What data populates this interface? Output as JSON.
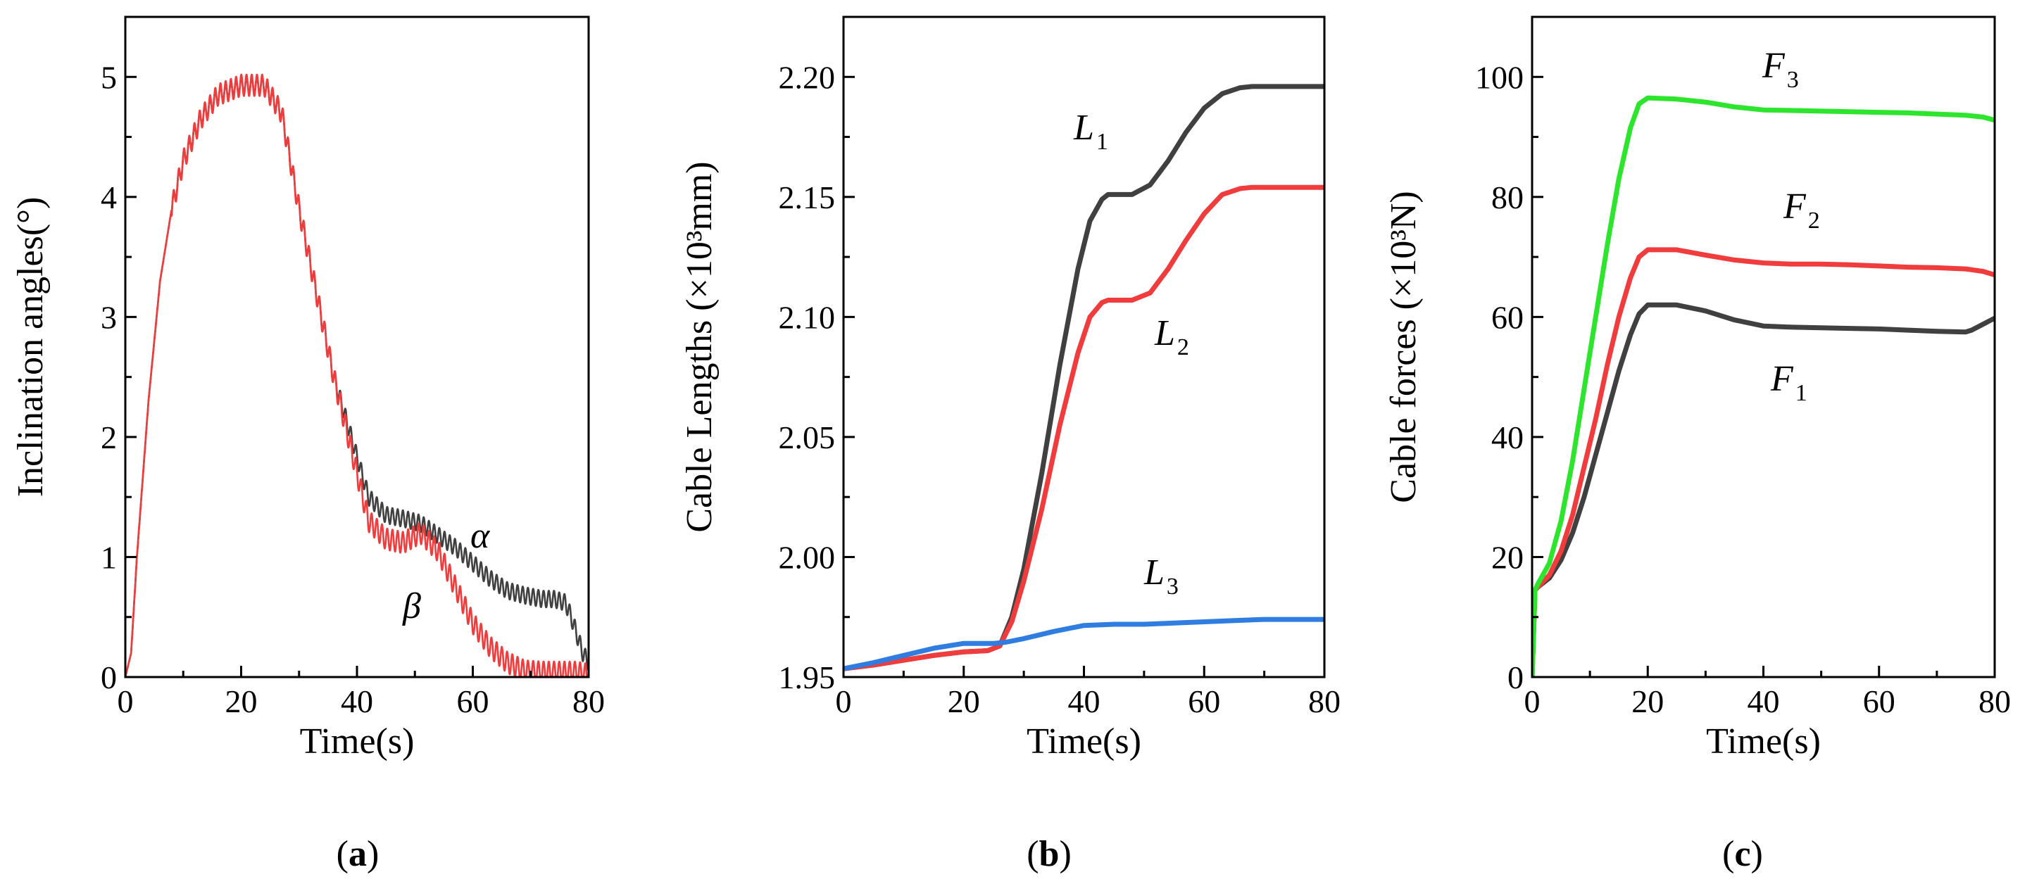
{
  "figure": {
    "panel_labels": [
      "a",
      "b",
      "c"
    ]
  },
  "colors": {
    "black": "#404040",
    "red": "#f03c3c",
    "blue": "#2f7de0",
    "green": "#2ee52e"
  },
  "chart_data": [
    {
      "type": "line",
      "id": "a",
      "xlabel": "Time(s)",
      "ylabel": "Inclination angles(°)",
      "xlim": [
        0,
        80
      ],
      "ylim": [
        0,
        5.5
      ],
      "xticks": [
        0,
        20,
        40,
        60,
        80
      ],
      "yticks": [
        0,
        1,
        2,
        3,
        4,
        5
      ],
      "series": [
        {
          "name": "α",
          "label": "α",
          "color": "black",
          "osc_amp": 0.07,
          "osc_period": 0.9,
          "x": [
            0,
            1,
            2,
            4,
            6,
            8,
            10,
            13,
            16,
            20,
            24,
            27,
            30,
            33,
            36,
            39,
            42,
            45,
            48,
            51,
            54,
            57,
            60,
            63,
            66,
            69,
            72,
            74,
            76,
            77,
            78,
            79,
            80
          ],
          "y": [
            0,
            0.2,
            1.0,
            2.3,
            3.3,
            3.9,
            4.3,
            4.65,
            4.85,
            4.93,
            4.93,
            4.7,
            3.9,
            3.2,
            2.5,
            2.0,
            1.5,
            1.35,
            1.32,
            1.28,
            1.18,
            1.08,
            0.95,
            0.82,
            0.72,
            0.68,
            0.65,
            0.65,
            0.62,
            0.5,
            0.35,
            0.2,
            0.12
          ]
        },
        {
          "name": "β",
          "label": "β",
          "color": "red",
          "osc_amp": 0.09,
          "osc_period": 0.9,
          "x": [
            0,
            1,
            2,
            4,
            6,
            8,
            10,
            13,
            16,
            20,
            24,
            27,
            30,
            33,
            36,
            39,
            42,
            45,
            48,
            51,
            54,
            57,
            60,
            63,
            66,
            69,
            72,
            74,
            76,
            78,
            80
          ],
          "y": [
            0,
            0.2,
            1.0,
            2.3,
            3.3,
            3.9,
            4.3,
            4.65,
            4.85,
            4.93,
            4.93,
            4.7,
            3.9,
            3.2,
            2.5,
            1.9,
            1.3,
            1.15,
            1.12,
            1.2,
            1.05,
            0.75,
            0.45,
            0.25,
            0.12,
            0.05,
            0.04,
            0.04,
            0.04,
            0.04,
            0.02
          ]
        }
      ]
    },
    {
      "type": "line",
      "id": "b",
      "xlabel": "Time(s)",
      "ylabel": "Cable Lengths (×10³mm)",
      "xlim": [
        0,
        80
      ],
      "ylim": [
        1.95,
        2.225
      ],
      "xticks": [
        0,
        20,
        40,
        60,
        80
      ],
      "yticks": [
        "1.95",
        "2.00",
        "2.05",
        "2.10",
        "2.15",
        "2.20"
      ],
      "series": [
        {
          "name": "L1",
          "label": "L",
          "sub": "1",
          "color": "black",
          "x": [
            0,
            5,
            10,
            15,
            20,
            24,
            26,
            28,
            30,
            33,
            36,
            39,
            41,
            43,
            44,
            45,
            48,
            51,
            54,
            57,
            60,
            63,
            66,
            68,
            70,
            75,
            80
          ],
          "y": [
            1.9535,
            1.955,
            1.957,
            1.959,
            1.9605,
            1.961,
            1.963,
            1.975,
            1.995,
            2.035,
            2.08,
            2.12,
            2.14,
            2.149,
            2.151,
            2.151,
            2.151,
            2.155,
            2.165,
            2.177,
            2.187,
            2.193,
            2.1955,
            2.196,
            2.196,
            2.196,
            2.196
          ]
        },
        {
          "name": "L2",
          "label": "L",
          "sub": "2",
          "color": "red",
          "x": [
            0,
            5,
            10,
            15,
            20,
            24,
            26,
            28,
            30,
            33,
            36,
            39,
            41,
            43,
            44,
            45,
            48,
            51,
            54,
            57,
            60,
            63,
            66,
            68,
            70,
            75,
            80
          ],
          "y": [
            1.9535,
            1.955,
            1.957,
            1.959,
            1.9605,
            1.961,
            1.963,
            1.973,
            1.99,
            2.02,
            2.055,
            2.085,
            2.1,
            2.106,
            2.107,
            2.107,
            2.107,
            2.11,
            2.12,
            2.132,
            2.143,
            2.151,
            2.1535,
            2.154,
            2.154,
            2.154,
            2.154
          ]
        },
        {
          "name": "L3",
          "label": "L",
          "sub": "3",
          "color": "blue",
          "x": [
            0,
            5,
            10,
            15,
            20,
            25,
            27,
            30,
            35,
            40,
            45,
            50,
            55,
            60,
            65,
            70,
            75,
            80
          ],
          "y": [
            1.9535,
            1.956,
            1.959,
            1.962,
            1.964,
            1.964,
            1.9645,
            1.966,
            1.969,
            1.9715,
            1.972,
            1.972,
            1.9725,
            1.973,
            1.9735,
            1.974,
            1.974,
            1.974
          ]
        }
      ]
    },
    {
      "type": "line",
      "id": "c",
      "xlabel": "Time(s)",
      "ylabel": "Cable forces (×10³N)",
      "xlim": [
        0,
        80
      ],
      "ylim": [
        0,
        110
      ],
      "xticks": [
        0,
        20,
        40,
        60,
        80
      ],
      "yticks": [
        0,
        20,
        40,
        60,
        80,
        100
      ],
      "series": [
        {
          "name": "F1",
          "label": "F",
          "sub": "1",
          "color": "black",
          "x": [
            0,
            0.5,
            1,
            3,
            5,
            7,
            9,
            11,
            13,
            15,
            17,
            18.5,
            20,
            25,
            30,
            35,
            40,
            45,
            50,
            55,
            60,
            65,
            70,
            75,
            76,
            77,
            78,
            79,
            80
          ],
          "y": [
            0,
            14.5,
            15,
            16.5,
            19.5,
            24,
            30,
            37,
            44,
            51,
            57,
            60.5,
            62,
            62,
            61,
            59.5,
            58.5,
            58.3,
            58.2,
            58.1,
            58,
            57.8,
            57.6,
            57.5,
            57.8,
            58.3,
            58.8,
            59.3,
            59.8
          ]
        },
        {
          "name": "F2",
          "label": "F",
          "sub": "2",
          "color": "red",
          "x": [
            0,
            0.5,
            1,
            3,
            5,
            7,
            9,
            11,
            13,
            15,
            17,
            18.5,
            20,
            25,
            30,
            35,
            40,
            45,
            50,
            55,
            60,
            65,
            70,
            75,
            78,
            80
          ],
          "y": [
            0,
            14.5,
            15,
            17,
            21,
            27,
            35,
            43,
            52,
            60,
            66.5,
            70,
            71.2,
            71.2,
            70.3,
            69.5,
            69,
            68.8,
            68.8,
            68.7,
            68.5,
            68.3,
            68.2,
            68,
            67.6,
            67
          ]
        },
        {
          "name": "F3",
          "label": "F",
          "sub": "3",
          "color": "green",
          "x": [
            0,
            0.5,
            1,
            3,
            5,
            7,
            9,
            11,
            13,
            15,
            17,
            18.5,
            20,
            25,
            30,
            35,
            40,
            45,
            50,
            55,
            60,
            65,
            70,
            75,
            78,
            80
          ],
          "y": [
            0,
            14.5,
            15.5,
            19,
            26,
            36,
            48,
            60,
            72,
            83,
            91.5,
            95.5,
            96.5,
            96.3,
            95.8,
            95,
            94.5,
            94.4,
            94.3,
            94.2,
            94.1,
            94,
            93.8,
            93.6,
            93.3,
            92.8
          ]
        }
      ]
    }
  ]
}
